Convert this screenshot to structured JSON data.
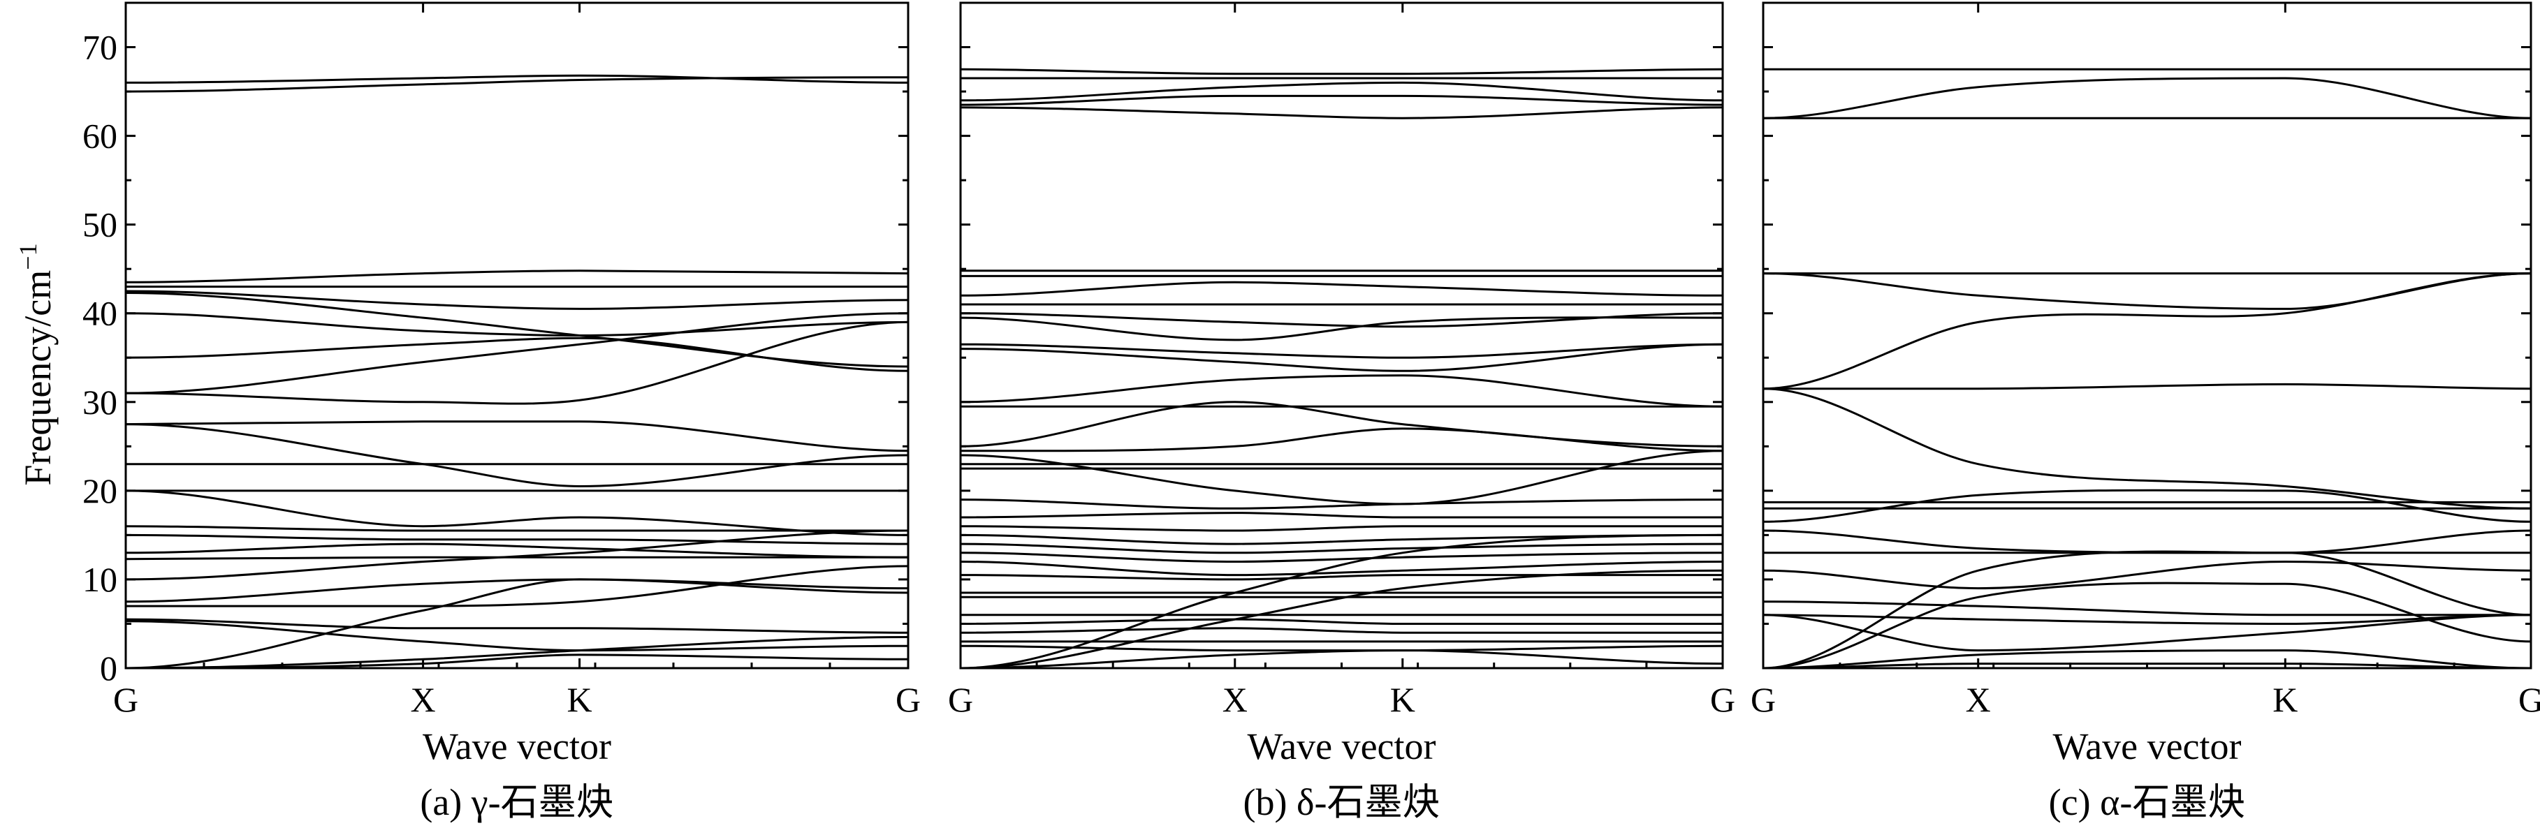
{
  "figure": {
    "ylabel_main": "Frequency/cm",
    "ylabel_sup": "−1",
    "y_ticks": [
      0,
      10,
      20,
      30,
      40,
      50,
      60,
      70
    ]
  },
  "chart_data": [
    {
      "type": "line",
      "caption": "(a) γ-石墨炔",
      "xlabel": "Wave vector",
      "ylabel": "Frequency/cm−1",
      "ylim": [
        0,
        75
      ],
      "xlim": [
        0,
        1
      ],
      "x_ticks": [
        {
          "label": "G",
          "pos": 0
        },
        {
          "label": "X",
          "pos": 0.38
        },
        {
          "label": "K",
          "pos": 0.58
        },
        {
          "label": "G",
          "pos": 1
        }
      ],
      "grid": false,
      "series": [
        {
          "x": [
            0,
            0.38,
            0.58,
            1
          ],
          "y": [
            66,
            66.5,
            66.8,
            66
          ]
        },
        {
          "x": [
            0,
            0.38,
            0.58,
            1
          ],
          "y": [
            65,
            65.8,
            66.3,
            66.6
          ]
        },
        {
          "x": [
            0,
            0.38,
            0.58,
            1
          ],
          "y": [
            43.5,
            44.5,
            44.8,
            44.5
          ]
        },
        {
          "x": [
            0,
            0.38,
            0.58,
            1
          ],
          "y": [
            43,
            43,
            43,
            43
          ]
        },
        {
          "x": [
            0,
            0.38,
            0.58,
            1
          ],
          "y": [
            42.5,
            41,
            40.5,
            41.5
          ]
        },
        {
          "x": [
            0,
            0.38,
            0.58,
            1
          ],
          "y": [
            42.3,
            39.5,
            37.5,
            34
          ]
        },
        {
          "x": [
            0,
            0.38,
            0.58,
            1
          ],
          "y": [
            40,
            38,
            37.5,
            39
          ]
        },
        {
          "x": [
            0,
            0.38,
            0.58,
            1
          ],
          "y": [
            35,
            36.5,
            37.2,
            33.5
          ]
        },
        {
          "x": [
            0,
            0.38,
            0.58,
            1
          ],
          "y": [
            31,
            34.5,
            36.5,
            40
          ]
        },
        {
          "x": [
            0,
            0.38,
            0.58,
            1
          ],
          "y": [
            31,
            30,
            30.2,
            39
          ]
        },
        {
          "x": [
            0,
            0.38,
            0.58,
            1
          ],
          "y": [
            27.5,
            27.8,
            27.8,
            24.5
          ]
        },
        {
          "x": [
            0,
            0.38,
            0.58,
            1
          ],
          "y": [
            27.5,
            23,
            20.5,
            24
          ]
        },
        {
          "x": [
            0,
            0.38,
            0.58,
            1
          ],
          "y": [
            23,
            23,
            23,
            23
          ]
        },
        {
          "x": [
            0,
            0.38,
            0.58,
            1
          ],
          "y": [
            20,
            20,
            20,
            20
          ]
        },
        {
          "x": [
            0,
            0.38,
            0.58,
            1
          ],
          "y": [
            20,
            16,
            17,
            15
          ]
        },
        {
          "x": [
            0,
            0.38,
            0.58,
            1
          ],
          "y": [
            16,
            15.5,
            15.5,
            15.5
          ]
        },
        {
          "x": [
            0,
            0.38,
            0.58,
            1
          ],
          "y": [
            15,
            14.5,
            14.5,
            14
          ]
        },
        {
          "x": [
            0,
            0.38,
            0.58,
            1
          ],
          "y": [
            13,
            14,
            13.5,
            12.5
          ]
        },
        {
          "x": [
            0,
            0.38,
            0.58,
            1
          ],
          "y": [
            12.3,
            12.5,
            12.5,
            12.5
          ]
        },
        {
          "x": [
            0,
            0.38,
            0.58,
            1
          ],
          "y": [
            10,
            12,
            13,
            15.5
          ]
        },
        {
          "x": [
            0,
            0.38,
            0.58,
            1
          ],
          "y": [
            7.5,
            9.5,
            10,
            9
          ]
        },
        {
          "x": [
            0,
            0.38,
            0.58,
            1
          ],
          "y": [
            7,
            7,
            7.5,
            11.5
          ]
        },
        {
          "x": [
            0,
            0.38,
            0.58,
            1
          ],
          "y": [
            5.5,
            4.5,
            4.5,
            4
          ]
        },
        {
          "x": [
            0,
            0.38,
            0.58,
            1
          ],
          "y": [
            5.3,
            3,
            2,
            2.5
          ]
        },
        {
          "x": [
            0,
            0.38,
            0.58,
            1
          ],
          "y": [
            0,
            6.5,
            10,
            8.5
          ]
        },
        {
          "x": [
            0,
            0.38,
            0.58,
            1
          ],
          "y": [
            0,
            1,
            2,
            3.5
          ]
        },
        {
          "x": [
            0,
            0.38,
            0.58,
            1
          ],
          "y": [
            0,
            0.5,
            1.5,
            1
          ]
        }
      ]
    },
    {
      "type": "line",
      "caption": "(b) δ-石墨炔",
      "xlabel": "Wave vector",
      "ylabel": "Frequency/cm−1",
      "ylim": [
        0,
        75
      ],
      "xlim": [
        0,
        1
      ],
      "x_ticks": [
        {
          "label": "G",
          "pos": 0
        },
        {
          "label": "X",
          "pos": 0.36
        },
        {
          "label": "K",
          "pos": 0.58
        },
        {
          "label": "G",
          "pos": 1
        }
      ],
      "grid": false,
      "series": [
        {
          "x": [
            0,
            0.36,
            0.58,
            1
          ],
          "y": [
            67.5,
            67,
            67,
            67.5
          ]
        },
        {
          "x": [
            0,
            0.36,
            0.58,
            1
          ],
          "y": [
            66.5,
            66.5,
            66.5,
            66.5
          ]
        },
        {
          "x": [
            0,
            0.36,
            0.58,
            1
          ],
          "y": [
            64,
            65.5,
            66,
            64
          ]
        },
        {
          "x": [
            0,
            0.36,
            0.58,
            1
          ],
          "y": [
            63.5,
            64.5,
            64.5,
            63.5
          ]
        },
        {
          "x": [
            0,
            0.36,
            0.58,
            1
          ],
          "y": [
            63.2,
            62.5,
            62,
            63.2
          ]
        },
        {
          "x": [
            0,
            0.36,
            0.58,
            1
          ],
          "y": [
            44.8,
            44.8,
            44.8,
            44.8
          ]
        },
        {
          "x": [
            0,
            0.36,
            0.58,
            1
          ],
          "y": [
            44.2,
            44.2,
            44.2,
            44.2
          ]
        },
        {
          "x": [
            0,
            0.36,
            0.58,
            1
          ],
          "y": [
            42,
            43.5,
            43,
            42
          ]
        },
        {
          "x": [
            0,
            0.36,
            0.58,
            1
          ],
          "y": [
            41,
            41,
            41,
            41
          ]
        },
        {
          "x": [
            0,
            0.36,
            0.58,
            1
          ],
          "y": [
            40,
            39,
            38.5,
            40
          ]
        },
        {
          "x": [
            0,
            0.36,
            0.58,
            1
          ],
          "y": [
            39.5,
            37,
            39,
            39.5
          ]
        },
        {
          "x": [
            0,
            0.36,
            0.58,
            1
          ],
          "y": [
            36.5,
            35.5,
            35,
            36.5
          ]
        },
        {
          "x": [
            0,
            0.36,
            0.58,
            1
          ],
          "y": [
            36,
            34.5,
            33.5,
            36.5
          ]
        },
        {
          "x": [
            0,
            0.36,
            0.58,
            1
          ],
          "y": [
            30,
            32.5,
            33,
            29.5
          ]
        },
        {
          "x": [
            0,
            0.36,
            0.58,
            1
          ],
          "y": [
            29.5,
            29.5,
            29.5,
            29.5
          ]
        },
        {
          "x": [
            0,
            0.36,
            0.58,
            1
          ],
          "y": [
            25,
            30,
            27.5,
            25
          ]
        },
        {
          "x": [
            0,
            0.36,
            0.58,
            1
          ],
          "y": [
            24.5,
            25,
            27,
            24.5
          ]
        },
        {
          "x": [
            0,
            0.36,
            0.58,
            1
          ],
          "y": [
            24,
            20,
            18.5,
            24.5
          ]
        },
        {
          "x": [
            0,
            0.36,
            0.58,
            1
          ],
          "y": [
            23,
            23,
            23,
            23
          ]
        },
        {
          "x": [
            0,
            0.36,
            0.58,
            1
          ],
          "y": [
            22.5,
            22.5,
            22.5,
            22.5
          ]
        },
        {
          "x": [
            0,
            0.36,
            0.58,
            1
          ],
          "y": [
            19,
            18,
            18.5,
            19
          ]
        },
        {
          "x": [
            0,
            0.36,
            0.58,
            1
          ],
          "y": [
            17,
            17.5,
            17,
            17
          ]
        },
        {
          "x": [
            0,
            0.36,
            0.58,
            1
          ],
          "y": [
            16,
            15.5,
            16,
            16
          ]
        },
        {
          "x": [
            0,
            0.36,
            0.58,
            1
          ],
          "y": [
            15,
            14,
            14.5,
            15
          ]
        },
        {
          "x": [
            0,
            0.36,
            0.58,
            1
          ],
          "y": [
            14,
            13,
            13.5,
            14
          ]
        },
        {
          "x": [
            0,
            0.36,
            0.58,
            1
          ],
          "y": [
            13,
            12,
            12.5,
            13
          ]
        },
        {
          "x": [
            0,
            0.36,
            0.58,
            1
          ],
          "y": [
            12,
            10.5,
            11,
            12
          ]
        },
        {
          "x": [
            0,
            0.36,
            0.58,
            1
          ],
          "y": [
            10.5,
            10,
            10.5,
            10.5
          ]
        },
        {
          "x": [
            0,
            0.36,
            0.58,
            1
          ],
          "y": [
            8.5,
            8.5,
            8.5,
            8.5
          ]
        },
        {
          "x": [
            0,
            0.36,
            0.58,
            1
          ],
          "y": [
            8,
            8,
            8,
            8
          ]
        },
        {
          "x": [
            0,
            0.36,
            0.58,
            1
          ],
          "y": [
            6,
            6,
            6,
            6
          ]
        },
        {
          "x": [
            0,
            0.36,
            0.58,
            1
          ],
          "y": [
            5,
            5.5,
            5,
            5
          ]
        },
        {
          "x": [
            0,
            0.36,
            0.58,
            1
          ],
          "y": [
            4,
            4.5,
            4,
            4
          ]
        },
        {
          "x": [
            0,
            0.36,
            0.58,
            1
          ],
          "y": [
            3,
            3,
            3,
            3
          ]
        },
        {
          "x": [
            0,
            0.36,
            0.58,
            1
          ],
          "y": [
            2.5,
            2,
            2,
            2.5
          ]
        },
        {
          "x": [
            0,
            0.36,
            0.58,
            1
          ],
          "y": [
            0,
            8.5,
            13,
            15
          ]
        },
        {
          "x": [
            0,
            0.36,
            0.58,
            1
          ],
          "y": [
            0,
            5.5,
            9,
            11
          ]
        },
        {
          "x": [
            0,
            0.36,
            0.58,
            1
          ],
          "y": [
            0,
            1.5,
            2,
            0.5
          ]
        }
      ]
    },
    {
      "type": "line",
      "caption": "(c) α-石墨炔",
      "xlabel": "Wave vector",
      "ylabel": "Frequency/cm−1",
      "ylim": [
        0,
        75
      ],
      "xlim": [
        0,
        1
      ],
      "x_ticks": [
        {
          "label": "G",
          "pos": 0
        },
        {
          "label": "X",
          "pos": 0.28
        },
        {
          "label": "K",
          "pos": 0.68
        },
        {
          "label": "G",
          "pos": 1
        }
      ],
      "grid": false,
      "series": [
        {
          "x": [
            0,
            0.28,
            0.68,
            1
          ],
          "y": [
            67.5,
            67.5,
            67.5,
            67.5
          ]
        },
        {
          "x": [
            0,
            0.28,
            0.68,
            1
          ],
          "y": [
            62,
            65.5,
            66.5,
            62
          ]
        },
        {
          "x": [
            0,
            0.28,
            0.68,
            1
          ],
          "y": [
            62,
            62,
            62,
            62
          ]
        },
        {
          "x": [
            0,
            0.28,
            0.68,
            1
          ],
          "y": [
            44.5,
            44.5,
            44.5,
            44.5
          ]
        },
        {
          "x": [
            0,
            0.28,
            0.68,
            1
          ],
          "y": [
            44.5,
            42,
            40.5,
            44.5
          ]
        },
        {
          "x": [
            0,
            0.28,
            0.68,
            1
          ],
          "y": [
            31.5,
            39,
            40,
            44.5
          ]
        },
        {
          "x": [
            0,
            0.28,
            0.68,
            1
          ],
          "y": [
            31.5,
            31.5,
            32,
            31.5
          ]
        },
        {
          "x": [
            0,
            0.28,
            0.68,
            1
          ],
          "y": [
            31.5,
            23,
            20.5,
            18
          ]
        },
        {
          "x": [
            0,
            0.28,
            0.68,
            1
          ],
          "y": [
            18.7,
            18.7,
            18.7,
            18.7
          ]
        },
        {
          "x": [
            0,
            0.28,
            0.68,
            1
          ],
          "y": [
            18,
            18,
            18,
            18
          ]
        },
        {
          "x": [
            0,
            0.28,
            0.68,
            1
          ],
          "y": [
            16.5,
            19.5,
            20,
            16.5
          ]
        },
        {
          "x": [
            0,
            0.28,
            0.68,
            1
          ],
          "y": [
            15.5,
            13.5,
            13,
            15.5
          ]
        },
        {
          "x": [
            0,
            0.28,
            0.68,
            1
          ],
          "y": [
            13,
            13,
            13,
            13
          ]
        },
        {
          "x": [
            0,
            0.28,
            0.68,
            1
          ],
          "y": [
            11,
            9,
            12,
            11
          ]
        },
        {
          "x": [
            0,
            0.28,
            0.68,
            1
          ],
          "y": [
            7.5,
            7,
            6,
            6
          ]
        },
        {
          "x": [
            0,
            0.28,
            0.68,
            1
          ],
          "y": [
            6,
            5.5,
            5,
            6
          ]
        },
        {
          "x": [
            0,
            0.28,
            0.68,
            1
          ],
          "y": [
            6,
            2,
            4,
            6
          ]
        },
        {
          "x": [
            0,
            0.28,
            0.68,
            1
          ],
          "y": [
            0,
            11,
            13,
            6
          ]
        },
        {
          "x": [
            0,
            0.28,
            0.68,
            1
          ],
          "y": [
            0,
            8,
            9.5,
            3
          ]
        },
        {
          "x": [
            0,
            0.28,
            0.68,
            1
          ],
          "y": [
            0,
            1.5,
            2,
            0
          ]
        },
        {
          "x": [
            0,
            0.28,
            0.68,
            1
          ],
          "y": [
            0,
            0.5,
            0.5,
            0
          ]
        }
      ]
    }
  ]
}
